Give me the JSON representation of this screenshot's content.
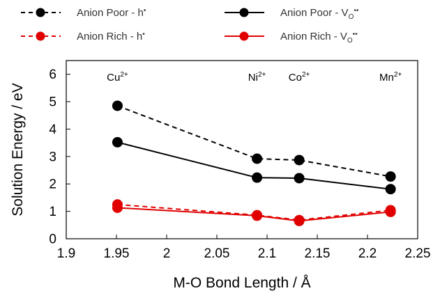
{
  "chart_data": {
    "type": "line",
    "xlabel": "M-O Bond Length / Å",
    "ylabel": "Solution Energy / eV",
    "xlim": [
      1.9,
      2.25
    ],
    "ylim": [
      0,
      6.5
    ],
    "x_ticks": [
      "1.9",
      "1.95",
      "2",
      "2.05",
      "2.1",
      "2.15",
      "2.2",
      "2.25"
    ],
    "y_ticks": [
      "0",
      "1",
      "2",
      "3",
      "4",
      "5",
      "6"
    ],
    "grid": false,
    "legend_position": "top",
    "x": [
      1.951,
      2.09,
      2.132,
      2.223
    ],
    "series": [
      {
        "name": "Anion Poor - h",
        "name_sup": "•",
        "color": "#000000",
        "dash": true,
        "values": [
          4.85,
          2.92,
          2.87,
          2.27
        ]
      },
      {
        "name": "Anion Poor - V",
        "name_sub": "O",
        "name_sup": "••",
        "color": "#000000",
        "dash": false,
        "values": [
          3.52,
          2.23,
          2.21,
          1.81
        ]
      },
      {
        "name": "Anion Rich - h",
        "name_sup": "•",
        "color": "#e00000",
        "dash": true,
        "values": [
          1.25,
          0.86,
          0.68,
          1.04
        ]
      },
      {
        "name": "Anion Rich - V",
        "name_sub": "O",
        "name_sup": "••",
        "color": "#e00000",
        "dash": false,
        "values": [
          1.13,
          0.84,
          0.65,
          0.98
        ]
      }
    ],
    "annotations": [
      {
        "base": "Cu",
        "sup": "2+",
        "x": 1.951
      },
      {
        "base": "Ni",
        "sup": "2+",
        "x": 2.09
      },
      {
        "base": "Co",
        "sup": "2+",
        "x": 2.132
      },
      {
        "base": "Mn",
        "sup": "2+",
        "x": 2.223
      }
    ]
  }
}
